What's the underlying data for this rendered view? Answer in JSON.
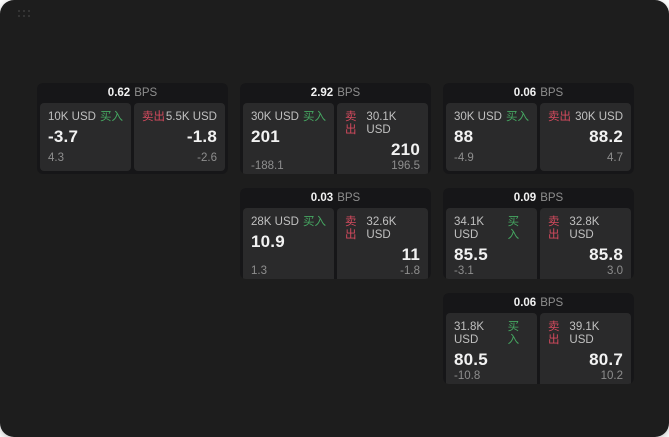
{
  "colors": {
    "page_bg": "#1d1d1d",
    "card_bg": "#161618",
    "panel_bg": "#2a2a2b",
    "buy": "#46a862",
    "sell": "#d44a5e",
    "text_primary": "#f2f2f2",
    "text_secondary": "#8e8e8e",
    "text_label": "#c0c0c0"
  },
  "icons": {
    "top_left": "drag-handle-icon"
  },
  "labels": {
    "bps": "BPS",
    "buy": "买入",
    "sell": "卖出"
  },
  "cards": [
    {
      "row": 1,
      "col": 1,
      "bps": "0.62",
      "buy": {
        "size": "10K USD",
        "value": "-3.7",
        "delta": "4.3"
      },
      "sell": {
        "size": "5.5K USD",
        "value": "-1.8",
        "delta": "-2.6"
      }
    },
    {
      "row": 1,
      "col": 2,
      "bps": "2.92",
      "buy": {
        "size": "30K USD",
        "value": "201",
        "delta": "-188.1"
      },
      "sell": {
        "size": "30.1K USD",
        "value": "210",
        "delta": "196.5"
      }
    },
    {
      "row": 1,
      "col": 3,
      "bps": "0.06",
      "buy": {
        "size": "30K USD",
        "value": "88",
        "delta": "-4.9"
      },
      "sell": {
        "size": "30K USD",
        "value": "88.2",
        "delta": "4.7"
      }
    },
    {
      "row": 2,
      "col": 2,
      "bps": "0.03",
      "buy": {
        "size": "28K USD",
        "value": "10.9",
        "delta": "1.3"
      },
      "sell": {
        "size": "32.6K USD",
        "value": "11",
        "delta": "-1.8"
      }
    },
    {
      "row": 2,
      "col": 3,
      "bps": "0.09",
      "buy": {
        "size": "34.1K USD",
        "value": "85.5",
        "delta": "-3.1"
      },
      "sell": {
        "size": "32.8K USD",
        "value": "85.8",
        "delta": "3.0"
      }
    },
    {
      "row": 3,
      "col": 3,
      "bps": "0.06",
      "buy": {
        "size": "31.8K USD",
        "value": "80.5",
        "delta": "-10.8"
      },
      "sell": {
        "size": "39.1K USD",
        "value": "80.7",
        "delta": "10.2"
      }
    }
  ]
}
